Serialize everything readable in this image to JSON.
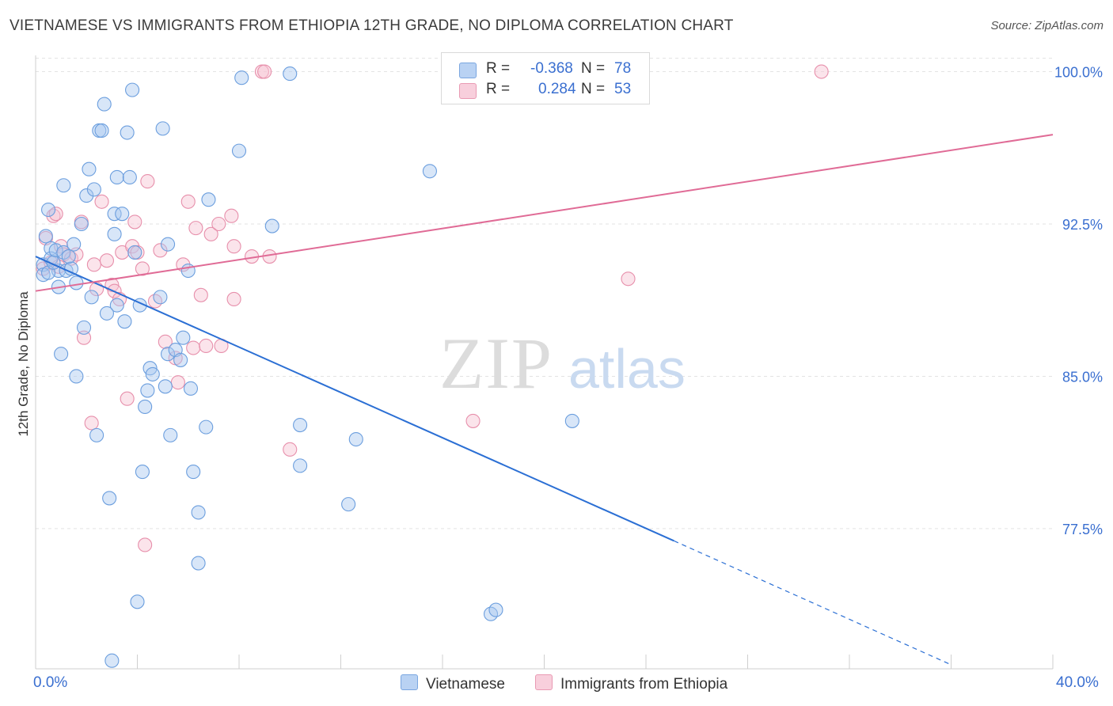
{
  "title": "VIETNAMESE VS IMMIGRANTS FROM ETHIOPIA 12TH GRADE, NO DIPLOMA CORRELATION CHART",
  "source": "Source: ZipAtlas.com",
  "watermark": {
    "zip": "ZIP",
    "atlas": "atlas"
  },
  "colors": {
    "blue_fill": "#a9c8f0",
    "blue_stroke": "#6b9ede",
    "blue_line": "#2b6fd4",
    "pink_fill": "#f6c3d3",
    "pink_stroke": "#e78fab",
    "pink_line": "#e06b96",
    "grid": "#e3e3e3",
    "tick_label": "#3a6fd0"
  },
  "stats": [
    {
      "r_label": "R =",
      "r_value": "-0.368",
      "n_label": "N =",
      "n_value": "78"
    },
    {
      "r_label": "R =",
      "r_value": "0.284",
      "n_label": "N =",
      "n_value": "53"
    }
  ],
  "x_ticks": {
    "left": "0.0%",
    "right": "40.0%"
  },
  "chart_data": {
    "type": "scatter",
    "title": "VIETNAMESE VS IMMIGRANTS FROM ETHIOPIA 12TH GRADE, NO DIPLOMA CORRELATION CHART",
    "xlabel": "",
    "ylabel": "12th Grade, No Diploma",
    "xlim": [
      0,
      40
    ],
    "ylim": [
      70.6,
      100.8
    ],
    "y_ticks": [
      {
        "value": 100.0,
        "label": "100.0%"
      },
      {
        "value": 92.5,
        "label": "92.5%"
      },
      {
        "value": 85.0,
        "label": "85.0%"
      },
      {
        "value": 77.5,
        "label": "77.5%"
      }
    ],
    "grid": true,
    "legend_position": "bottom",
    "series": [
      {
        "name": "Vietnamese",
        "color": "#a9c8f0",
        "trend": {
          "x0": 0.0,
          "y0": 90.9,
          "x1": 25.1,
          "y1": 76.9,
          "dash_x1": 36.0,
          "dash_y1": 70.8
        },
        "points": [
          [
            0.3,
            90.5
          ],
          [
            0.3,
            90.0
          ],
          [
            0.4,
            91.9
          ],
          [
            0.5,
            93.2
          ],
          [
            0.6,
            91.3
          ],
          [
            0.6,
            90.8
          ],
          [
            0.8,
            91.2
          ],
          [
            0.9,
            90.2
          ],
          [
            0.9,
            89.4
          ],
          [
            1.0,
            86.1
          ],
          [
            1.1,
            94.4
          ],
          [
            1.1,
            91.1
          ],
          [
            1.2,
            90.2
          ],
          [
            1.4,
            90.3
          ],
          [
            1.5,
            91.5
          ],
          [
            1.6,
            89.6
          ],
          [
            1.6,
            85.0
          ],
          [
            1.8,
            92.5
          ],
          [
            1.9,
            87.4
          ],
          [
            2.0,
            93.9
          ],
          [
            2.1,
            95.2
          ],
          [
            2.2,
            88.9
          ],
          [
            2.3,
            94.2
          ],
          [
            2.4,
            82.1
          ],
          [
            2.5,
            97.1
          ],
          [
            2.6,
            97.1
          ],
          [
            2.7,
            98.4
          ],
          [
            2.9,
            79.0
          ],
          [
            3.0,
            71.0
          ],
          [
            3.1,
            93.0
          ],
          [
            3.1,
            92.0
          ],
          [
            3.2,
            88.5
          ],
          [
            3.2,
            94.8
          ],
          [
            3.4,
            93.0
          ],
          [
            3.5,
            87.7
          ],
          [
            3.6,
            97.0
          ],
          [
            3.7,
            94.8
          ],
          [
            3.8,
            99.1
          ],
          [
            3.9,
            91.1
          ],
          [
            4.0,
            73.9
          ],
          [
            4.1,
            88.5
          ],
          [
            4.2,
            80.3
          ],
          [
            4.3,
            83.5
          ],
          [
            4.4,
            84.3
          ],
          [
            4.5,
            85.4
          ],
          [
            4.6,
            85.1
          ],
          [
            4.9,
            88.9
          ],
          [
            5.0,
            97.2
          ],
          [
            5.1,
            84.5
          ],
          [
            5.2,
            86.1
          ],
          [
            5.2,
            91.5
          ],
          [
            5.3,
            82.1
          ],
          [
            5.5,
            86.3
          ],
          [
            5.7,
            85.8
          ],
          [
            5.8,
            86.9
          ],
          [
            6.0,
            90.2
          ],
          [
            6.1,
            84.4
          ],
          [
            6.2,
            80.3
          ],
          [
            6.4,
            78.3
          ],
          [
            6.4,
            75.8
          ],
          [
            6.7,
            82.5
          ],
          [
            6.8,
            93.7
          ],
          [
            8.0,
            96.1
          ],
          [
            8.1,
            99.7
          ],
          [
            9.3,
            92.4
          ],
          [
            10.0,
            99.9
          ],
          [
            10.4,
            82.6
          ],
          [
            10.4,
            80.6
          ],
          [
            12.3,
            78.7
          ],
          [
            12.6,
            81.9
          ],
          [
            15.5,
            95.1
          ],
          [
            17.9,
            73.3
          ],
          [
            18.1,
            73.5
          ],
          [
            21.1,
            82.8
          ],
          [
            0.5,
            90.1
          ],
          [
            0.7,
            90.6
          ],
          [
            1.3,
            90.9
          ],
          [
            2.8,
            88.1
          ]
        ]
      },
      {
        "name": "Immigrants from Ethiopia",
        "color": "#f6c3d3",
        "trend": {
          "x0": 0.0,
          "y0": 89.2,
          "x1": 40.0,
          "y1": 96.9
        },
        "points": [
          [
            0.3,
            90.3
          ],
          [
            0.4,
            91.8
          ],
          [
            0.6,
            90.6
          ],
          [
            0.7,
            92.9
          ],
          [
            0.8,
            93.0
          ],
          [
            0.9,
            90.4
          ],
          [
            1.0,
            91.4
          ],
          [
            1.1,
            91.0
          ],
          [
            1.4,
            90.8
          ],
          [
            1.6,
            91.0
          ],
          [
            1.8,
            92.6
          ],
          [
            1.9,
            86.9
          ],
          [
            2.2,
            82.7
          ],
          [
            2.3,
            90.5
          ],
          [
            2.4,
            89.3
          ],
          [
            2.6,
            93.6
          ],
          [
            2.8,
            90.7
          ],
          [
            3.0,
            89.5
          ],
          [
            3.1,
            89.2
          ],
          [
            3.3,
            88.8
          ],
          [
            3.4,
            91.1
          ],
          [
            3.6,
            83.9
          ],
          [
            3.8,
            91.4
          ],
          [
            3.9,
            92.6
          ],
          [
            4.0,
            91.1
          ],
          [
            4.2,
            90.3
          ],
          [
            4.3,
            76.7
          ],
          [
            4.4,
            94.6
          ],
          [
            4.7,
            88.7
          ],
          [
            4.9,
            91.2
          ],
          [
            5.1,
            86.7
          ],
          [
            5.5,
            85.9
          ],
          [
            5.6,
            84.7
          ],
          [
            5.8,
            90.5
          ],
          [
            6.0,
            93.6
          ],
          [
            6.2,
            86.4
          ],
          [
            6.3,
            92.3
          ],
          [
            6.5,
            89.0
          ],
          [
            6.7,
            86.5
          ],
          [
            6.9,
            92.0
          ],
          [
            7.2,
            92.5
          ],
          [
            7.3,
            86.5
          ],
          [
            7.7,
            92.9
          ],
          [
            7.8,
            88.8
          ],
          [
            7.8,
            91.4
          ],
          [
            8.5,
            90.9
          ],
          [
            8.9,
            100.0
          ],
          [
            9.0,
            100.0
          ],
          [
            9.2,
            90.9
          ],
          [
            10.0,
            81.4
          ],
          [
            17.2,
            82.8
          ],
          [
            23.3,
            89.8
          ],
          [
            30.9,
            100.0
          ]
        ]
      }
    ]
  }
}
